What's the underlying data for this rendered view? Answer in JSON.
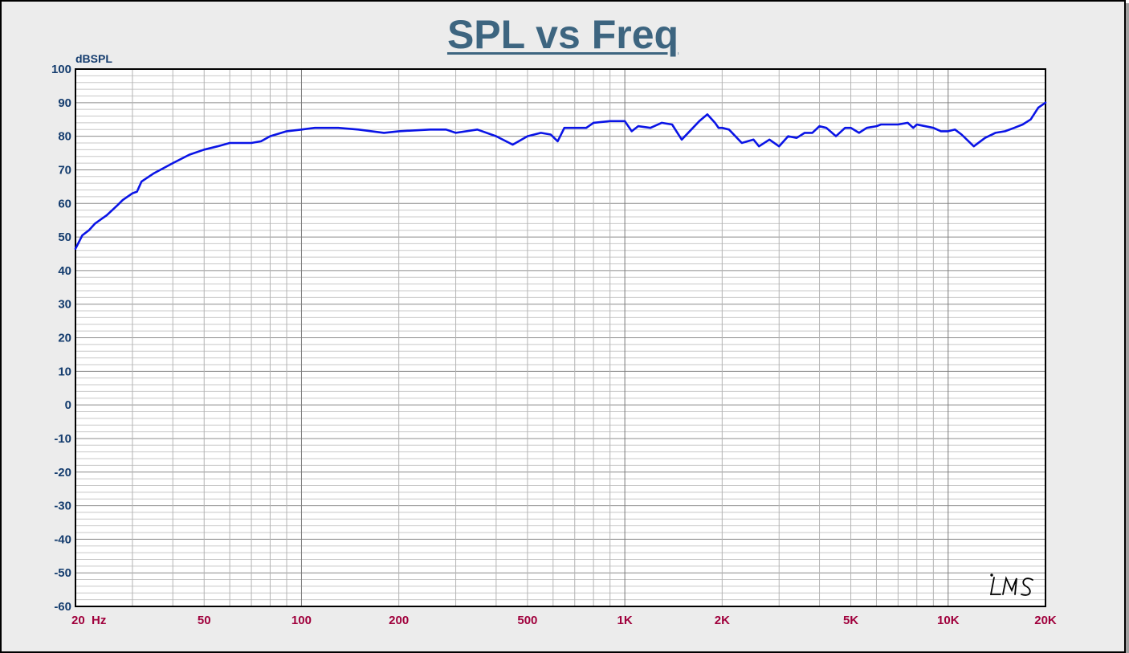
{
  "chart_data": {
    "type": "line",
    "title": "SPL vs Freq",
    "ylabel": "dBSPL",
    "xlabel": "",
    "x_scale": "log",
    "xlim": [
      20,
      20000
    ],
    "ylim": [
      -60,
      100
    ],
    "grid": true,
    "y_ticks": [
      "100",
      "90",
      "80",
      "70",
      "60",
      "50",
      "40",
      "30",
      "20",
      "10",
      "0",
      "-10",
      "-20",
      "-30",
      "-40",
      "-50",
      "-60"
    ],
    "x_ticks": [
      {
        "value": 20,
        "label": "20  Hz"
      },
      {
        "value": 50,
        "label": "50"
      },
      {
        "value": 100,
        "label": "100"
      },
      {
        "value": 200,
        "label": "200"
      },
      {
        "value": 500,
        "label": "500"
      },
      {
        "value": 1000,
        "label": "1K"
      },
      {
        "value": 2000,
        "label": "2K"
      },
      {
        "value": 5000,
        "label": "5K"
      },
      {
        "value": 10000,
        "label": "10K"
      },
      {
        "value": 20000,
        "label": "20K"
      }
    ],
    "watermark": "LMS",
    "series": [
      {
        "color": "#0a14e6",
        "x": [
          20,
          21,
          22,
          23,
          25,
          27,
          28,
          30,
          31,
          32,
          35,
          40,
          45,
          50,
          55,
          60,
          65,
          70,
          75,
          80,
          90,
          100,
          110,
          130,
          150,
          180,
          200,
          250,
          280,
          300,
          350,
          400,
          450,
          500,
          550,
          590,
          620,
          650,
          700,
          760,
          800,
          900,
          1000,
          1050,
          1100,
          1200,
          1300,
          1400,
          1500,
          1700,
          1800,
          1900,
          1950,
          2000,
          2100,
          2300,
          2500,
          2600,
          2800,
          3000,
          3200,
          3400,
          3600,
          3800,
          4000,
          4200,
          4500,
          4800,
          5000,
          5300,
          5600,
          6000,
          6200,
          7000,
          7500,
          7800,
          8000,
          9000,
          9500,
          10000,
          10500,
          11000,
          12000,
          13000,
          14000,
          15000,
          16000,
          17000,
          18000,
          19000,
          20000
        ],
        "y": [
          46.5,
          50.5,
          52,
          54,
          56.5,
          59.5,
          61,
          63,
          63.5,
          66.5,
          69,
          72,
          74.5,
          76,
          77,
          78,
          78,
          78,
          78.5,
          80,
          81.5,
          82,
          82.5,
          82.5,
          82,
          81,
          81.5,
          82,
          82,
          81,
          82,
          80,
          77.5,
          80,
          81,
          80.5,
          78.5,
          82.5,
          82.5,
          82.5,
          84,
          84.5,
          84.5,
          81.5,
          83,
          82.5,
          84,
          83.5,
          79,
          84.5,
          86.5,
          84,
          82.5,
          82.5,
          82,
          78,
          79,
          77,
          79,
          77,
          80,
          79.5,
          81,
          81,
          83,
          82.5,
          80,
          82.5,
          82.5,
          81,
          82.5,
          83,
          83.5,
          83.5,
          84,
          82.5,
          83.5,
          82.5,
          81.5,
          81.5,
          82,
          80.5,
          77,
          79.5,
          81,
          81.5,
          82.5,
          83.5,
          85,
          88.5,
          90
        ]
      }
    ]
  }
}
